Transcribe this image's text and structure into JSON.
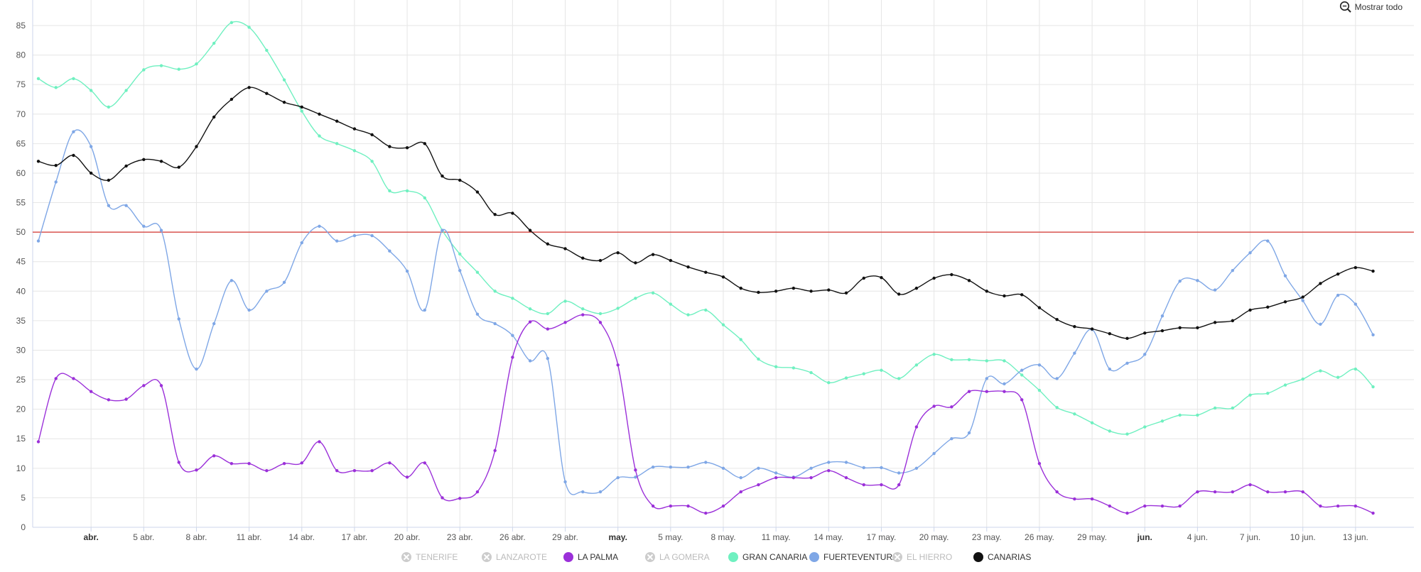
{
  "reset_zoom": {
    "label": "Mostrar todo",
    "icon": "zoom-out-icon"
  },
  "legend": [
    {
      "label": "TENERIFE",
      "visible": false,
      "color": "#cccccc"
    },
    {
      "label": "LANZAROTE",
      "visible": false,
      "color": "#cccccc"
    },
    {
      "label": "LA PALMA",
      "visible": true,
      "color": "#9b30d9"
    },
    {
      "label": "LA GOMERA",
      "visible": false,
      "color": "#cccccc"
    },
    {
      "label": "GRAN CANARIA",
      "visible": true,
      "color": "#6ff0c0"
    },
    {
      "label": "FUERTEVENTURA",
      "visible": true,
      "color": "#7fa7e6"
    },
    {
      "label": "EL HIERRO",
      "visible": false,
      "color": "#cccccc"
    },
    {
      "label": "CANARIAS",
      "visible": true,
      "color": "#111111"
    }
  ],
  "chart_data": {
    "type": "line",
    "ylim": [
      0,
      85
    ],
    "y_ticks": [
      0,
      5,
      10,
      15,
      20,
      25,
      30,
      35,
      40,
      45,
      50,
      55,
      60,
      65,
      70,
      75,
      80,
      85
    ],
    "x_ticks": [
      {
        "label": "abr.",
        "bold": true
      },
      {
        "label": "5 abr.",
        "bold": false
      },
      {
        "label": "8 abr.",
        "bold": false
      },
      {
        "label": "11 abr.",
        "bold": false
      },
      {
        "label": "14 abr.",
        "bold": false
      },
      {
        "label": "17 abr.",
        "bold": false
      },
      {
        "label": "20 abr.",
        "bold": false
      },
      {
        "label": "23 abr.",
        "bold": false
      },
      {
        "label": "26 abr.",
        "bold": false
      },
      {
        "label": "29 abr.",
        "bold": false
      },
      {
        "label": "may.",
        "bold": true
      },
      {
        "label": "5 may.",
        "bold": false
      },
      {
        "label": "8 may.",
        "bold": false
      },
      {
        "label": "11 may.",
        "bold": false
      },
      {
        "label": "14 may.",
        "bold": false
      },
      {
        "label": "17 may.",
        "bold": false
      },
      {
        "label": "20 may.",
        "bold": false
      },
      {
        "label": "23 may.",
        "bold": false
      },
      {
        "label": "26 may.",
        "bold": false
      },
      {
        "label": "29 may.",
        "bold": false
      },
      {
        "label": "jun.",
        "bold": true
      },
      {
        "label": "4 jun.",
        "bold": false
      },
      {
        "label": "7 jun.",
        "bold": false
      },
      {
        "label": "10 jun.",
        "bold": false
      },
      {
        "label": "13 jun.",
        "bold": false
      }
    ],
    "reference_line": {
      "value": 50,
      "color": "#d9534f"
    },
    "x_dates": [
      "2020-03-29",
      "2020-03-30",
      "2020-03-31",
      "2020-04-01",
      "2020-04-02",
      "2020-04-03",
      "2020-04-04",
      "2020-04-05",
      "2020-04-06",
      "2020-04-07",
      "2020-04-08",
      "2020-04-09",
      "2020-04-10",
      "2020-04-11",
      "2020-04-12",
      "2020-04-13",
      "2020-04-14",
      "2020-04-15",
      "2020-04-16",
      "2020-04-17",
      "2020-04-18",
      "2020-04-19",
      "2020-04-20",
      "2020-04-21",
      "2020-04-22",
      "2020-04-23",
      "2020-04-24",
      "2020-04-25",
      "2020-04-26",
      "2020-04-27",
      "2020-04-28",
      "2020-04-29",
      "2020-04-30",
      "2020-05-01",
      "2020-05-02",
      "2020-05-03",
      "2020-05-04",
      "2020-05-05",
      "2020-05-06",
      "2020-05-07",
      "2020-05-08",
      "2020-05-09",
      "2020-05-10",
      "2020-05-11",
      "2020-05-12",
      "2020-05-13",
      "2020-05-14",
      "2020-05-15",
      "2020-05-16",
      "2020-05-17",
      "2020-05-18",
      "2020-05-19",
      "2020-05-20",
      "2020-05-21",
      "2020-05-22",
      "2020-05-23",
      "2020-05-24",
      "2020-05-25",
      "2020-05-26",
      "2020-05-27",
      "2020-05-28",
      "2020-05-29",
      "2020-05-30",
      "2020-05-31",
      "2020-06-01",
      "2020-06-02",
      "2020-06-03",
      "2020-06-04",
      "2020-06-05",
      "2020-06-06",
      "2020-06-07",
      "2020-06-08",
      "2020-06-09",
      "2020-06-10",
      "2020-06-11",
      "2020-06-12",
      "2020-06-13",
      "2020-06-14",
      "2020-06-15"
    ],
    "series": [
      {
        "name": "CANARIAS",
        "color": "#111111",
        "values": [
          62,
          61.3,
          63,
          60,
          58.8,
          61.2,
          62.3,
          62,
          61,
          64.5,
          69.5,
          72.5,
          74.5,
          73.5,
          72,
          71.2,
          70,
          68.8,
          67.5,
          66.5,
          64.5,
          64.3,
          65,
          59.5,
          58.8,
          56.8,
          53,
          53.2,
          50.3,
          48,
          47.2,
          45.6,
          45.2,
          46.5,
          44.8,
          46.2,
          45.2,
          44.1,
          43.2,
          42.4,
          40.5,
          39.8,
          40,
          40.5,
          40,
          40.2,
          39.7,
          42.2,
          42.3,
          39.5,
          40.5,
          42.2,
          42.8,
          41.8,
          40,
          39.2,
          39.4,
          37.2,
          35.2,
          34,
          33.6,
          32.8,
          32,
          32.9,
          33.3,
          33.8,
          33.8,
          34.7,
          35,
          36.8,
          37.3,
          38.2,
          39,
          41.3,
          42.9,
          44,
          43.4
        ]
      },
      {
        "name": "GRAN CANARIA",
        "color": "#6ff0c0",
        "values": [
          76,
          74.5,
          76,
          74,
          71.2,
          74,
          77.5,
          78.2,
          77.6,
          78.5,
          82,
          85.5,
          84.7,
          80.8,
          75.8,
          70.5,
          66.3,
          65,
          63.8,
          62,
          57,
          57,
          55.8,
          50.3,
          46.3,
          43.2,
          40,
          38.8,
          37,
          36.2,
          38.3,
          37,
          36.2,
          37.1,
          38.8,
          39.7,
          37.8,
          36,
          36.8,
          34.3,
          31.8,
          28.5,
          27.2,
          27,
          26.2,
          24.5,
          25.3,
          26,
          26.6,
          25.2,
          27.5,
          29.3,
          28.4,
          28.4,
          28.2,
          28.2,
          25.8,
          23.2,
          20.3,
          19.2,
          17.7,
          16.3,
          15.8,
          17,
          18,
          19,
          19,
          20.2,
          20.2,
          22.4,
          22.7,
          24.1,
          25.1,
          26.5,
          25.4,
          26.8,
          23.8
        ]
      },
      {
        "name": "FUERTEVENTURA",
        "color": "#7fa7e6",
        "values": [
          48.5,
          58.5,
          67,
          64.5,
          54.5,
          54.5,
          51,
          50.3,
          35.3,
          26.8,
          34.5,
          41.8,
          36.8,
          40,
          41.5,
          48.2,
          51,
          48.5,
          49.4,
          49.4,
          46.8,
          43.4,
          36.8,
          50.3,
          43.5,
          36.1,
          34.5,
          32.5,
          28.2,
          28.6,
          7.7,
          6,
          6,
          8.4,
          8.5,
          10.2,
          10.2,
          10.2,
          11,
          10,
          8.4,
          10,
          9.2,
          8.5,
          10,
          11,
          11,
          10.1,
          10.1,
          9.2,
          10,
          12.5,
          15,
          16,
          25.2,
          24.3,
          26.6,
          27.5,
          25.2,
          29.5,
          33.5,
          26.8,
          27.8,
          29.3,
          35.8,
          41.7,
          41.8,
          40.2,
          43.5,
          46.5,
          48.5,
          42.6,
          38.4,
          34.4,
          39.3,
          37.8,
          32.6
        ]
      },
      {
        "name": "LA PALMA",
        "color": "#9b30d9",
        "values": [
          14.5,
          25.2,
          25.2,
          23,
          21.6,
          21.7,
          24,
          24,
          11,
          9.7,
          12.1,
          10.8,
          10.8,
          9.6,
          10.8,
          10.9,
          14.5,
          9.6,
          9.6,
          9.6,
          10.9,
          8.5,
          10.9,
          5,
          4.9,
          6,
          13,
          28.8,
          34.8,
          33.6,
          34.7,
          36,
          34.7,
          27.5,
          9.7,
          3.6,
          3.6,
          3.6,
          2.4,
          3.6,
          6,
          7.2,
          8.4,
          8.4,
          8.4,
          9.6,
          8.4,
          7.2,
          7.2,
          7.2,
          17,
          20.5,
          20.4,
          23,
          23,
          23,
          21.6,
          10.8,
          6,
          4.8,
          4.8,
          3.6,
          2.4,
          3.6,
          3.6,
          3.6,
          6,
          6,
          6,
          7.2,
          6,
          6,
          6,
          3.6,
          3.6,
          3.6,
          2.4
        ]
      }
    ]
  }
}
